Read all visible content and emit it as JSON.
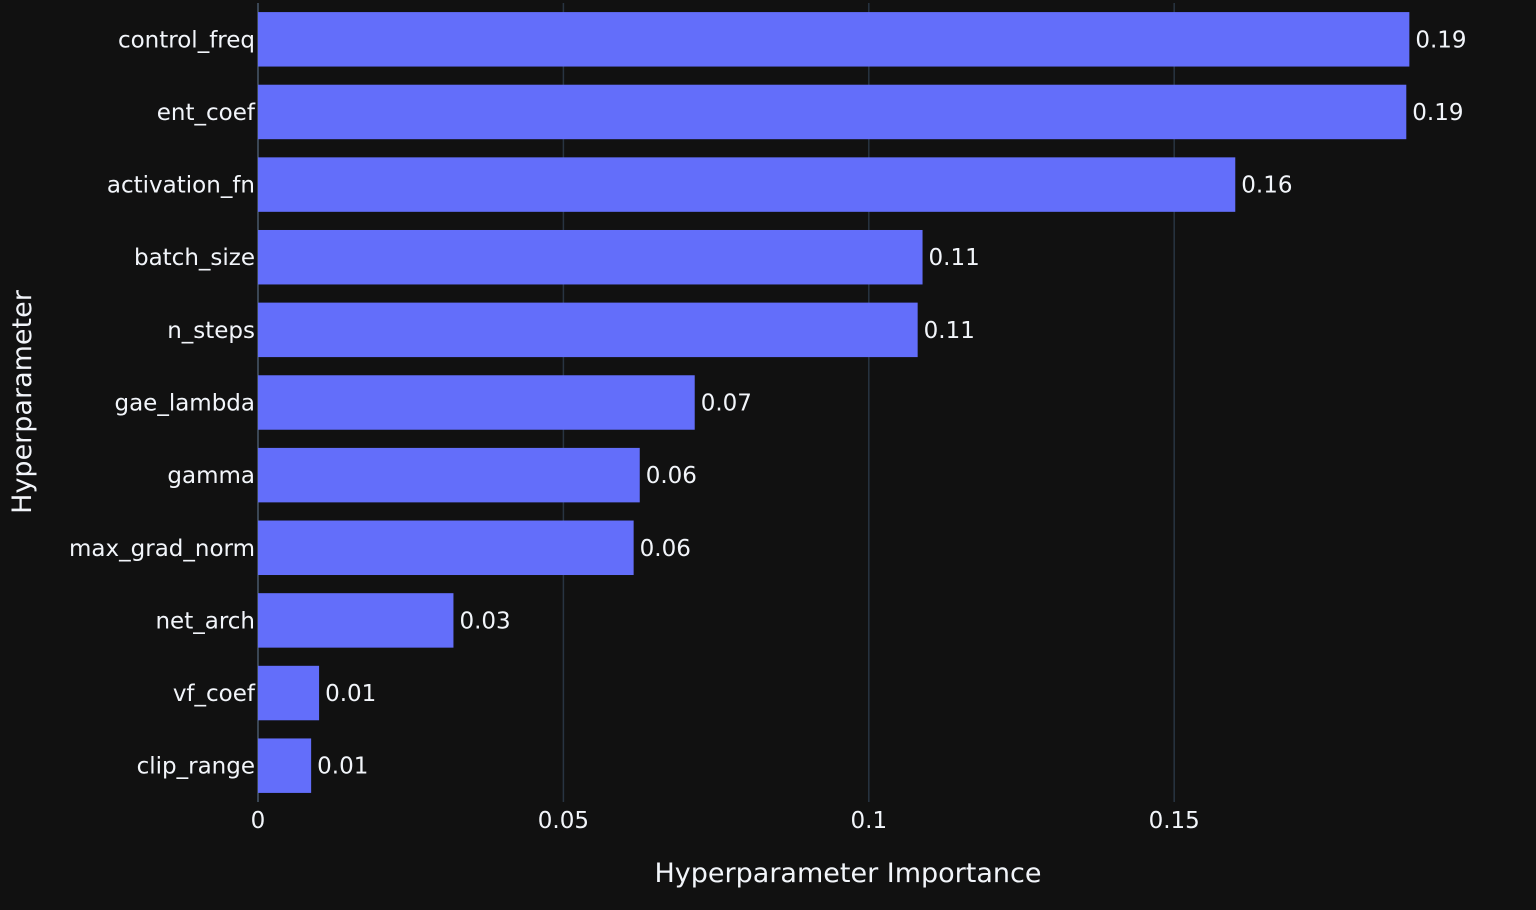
{
  "chart_data": {
    "type": "bar",
    "orientation": "horizontal",
    "title": "",
    "xlabel": "Hyperparameter Importance",
    "ylabel": "Hyperparameter",
    "xlim": [
      0,
      0.1945
    ],
    "x_ticks": [
      0,
      0.05,
      0.1,
      0.15
    ],
    "x_tick_labels": [
      "0",
      "0.05",
      "0.1",
      "0.15"
    ],
    "grid": true,
    "categories": [
      "control_freq",
      "ent_coef",
      "activation_fn",
      "batch_size",
      "n_steps",
      "gae_lambda",
      "gamma",
      "max_grad_norm",
      "net_arch",
      "vf_coef",
      "clip_range"
    ],
    "values": [
      0.1885,
      0.188,
      0.16,
      0.1088,
      0.108,
      0.0715,
      0.0625,
      0.0615,
      0.032,
      0.01,
      0.0087
    ],
    "value_labels": [
      "0.19",
      "0.19",
      "0.16",
      "0.11",
      "0.11",
      "0.07",
      "0.06",
      "0.06",
      "0.03",
      "0.01",
      "0.01"
    ],
    "colors": {
      "background": "#111111",
      "bar": "#636efa",
      "grid": "#283442",
      "text": "#f2f5fa"
    }
  }
}
